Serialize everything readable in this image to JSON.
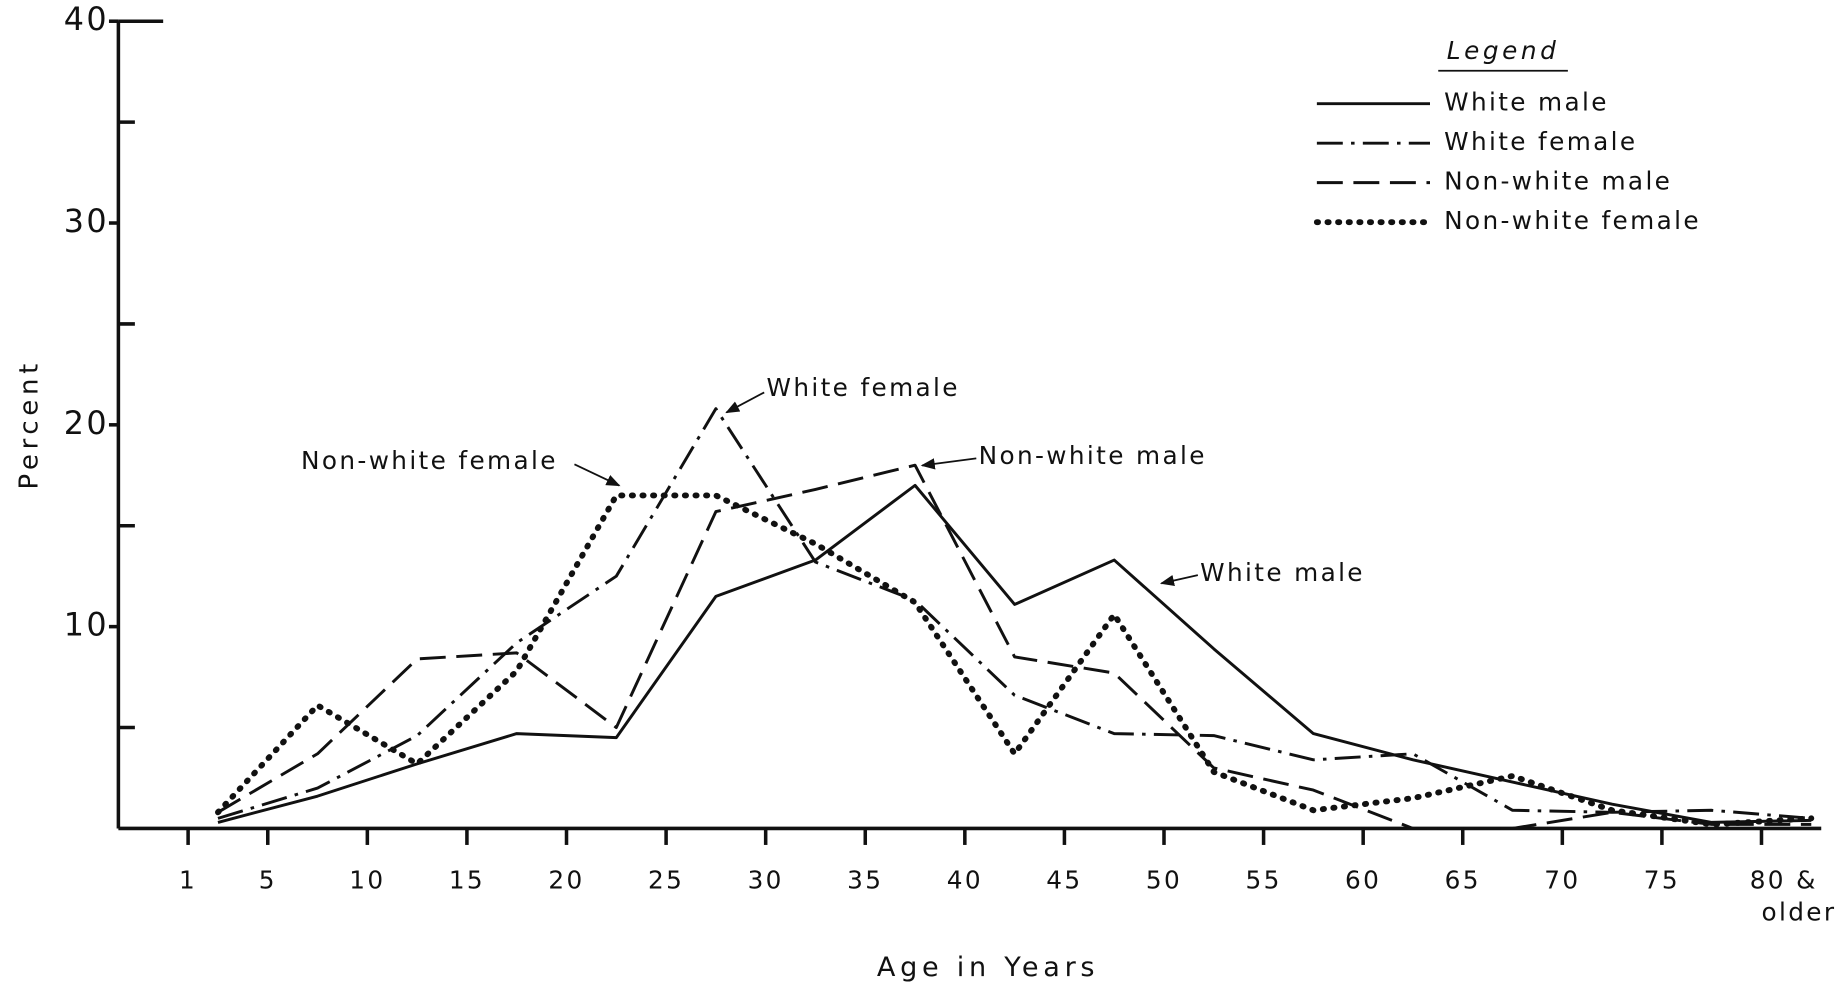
{
  "chart_data": {
    "type": "line",
    "xlabel": "Age in Years",
    "ylabel": "Percent",
    "x": [
      2.5,
      7.5,
      12.5,
      17.5,
      22.5,
      27.5,
      32.5,
      37.5,
      42.5,
      47.5,
      52.5,
      57.5,
      62.5,
      67.5,
      72.5,
      77.5,
      82.5
    ],
    "series": [
      {
        "name": "White male",
        "color": "#111111",
        "style": "solid",
        "values": [
          0.3,
          1.6,
          3.2,
          4.7,
          4.5,
          11.5,
          13.3,
          17,
          11.1,
          13.3,
          8.9,
          4.7,
          3.4,
          2.3,
          1.2,
          0.3,
          0.4
        ]
      },
      {
        "name": "White female",
        "color": "#111111",
        "style": "dashdot",
        "values": [
          0.5,
          2,
          4.6,
          9.2,
          12.5,
          20.8,
          13.2,
          11.3,
          6.6,
          4.7,
          4.6,
          3.4,
          3.7,
          0.9,
          0.8,
          0.9,
          0.5
        ]
      },
      {
        "name": "Non-white male",
        "color": "#111111",
        "style": "dashed",
        "values": [
          0.8,
          3.7,
          8.4,
          8.7,
          5,
          15.7,
          16.8,
          18,
          8.5,
          7.7,
          3,
          1.9,
          0,
          0,
          0.8,
          0.2,
          0.2
        ]
      },
      {
        "name": "Non-white female",
        "color": "#111111",
        "style": "dotted",
        "values": [
          0.8,
          6.1,
          3.2,
          7.8,
          16.5,
          16.5,
          14.1,
          11.2,
          3.7,
          10.6,
          2.8,
          0.9,
          1.5,
          2.6,
          0.9,
          0.2,
          0.5
        ]
      }
    ],
    "xlim": [
      -2.5,
      83
    ],
    "xticks": [
      1,
      5,
      10,
      15,
      20,
      25,
      30,
      35,
      40,
      45,
      50,
      55,
      60,
      65,
      70,
      75,
      {
        "value": 80,
        "label": "80 & older"
      }
    ],
    "ylim": [
      0,
      40
    ],
    "yticks": [
      10,
      20,
      30,
      40
    ],
    "yticks_minor": [
      5,
      15,
      25,
      35
    ],
    "legend": "top-right",
    "legend_title": "Legend",
    "annotations": [
      "White female",
      "Non-white female",
      "Non-white male",
      "White male"
    ]
  }
}
